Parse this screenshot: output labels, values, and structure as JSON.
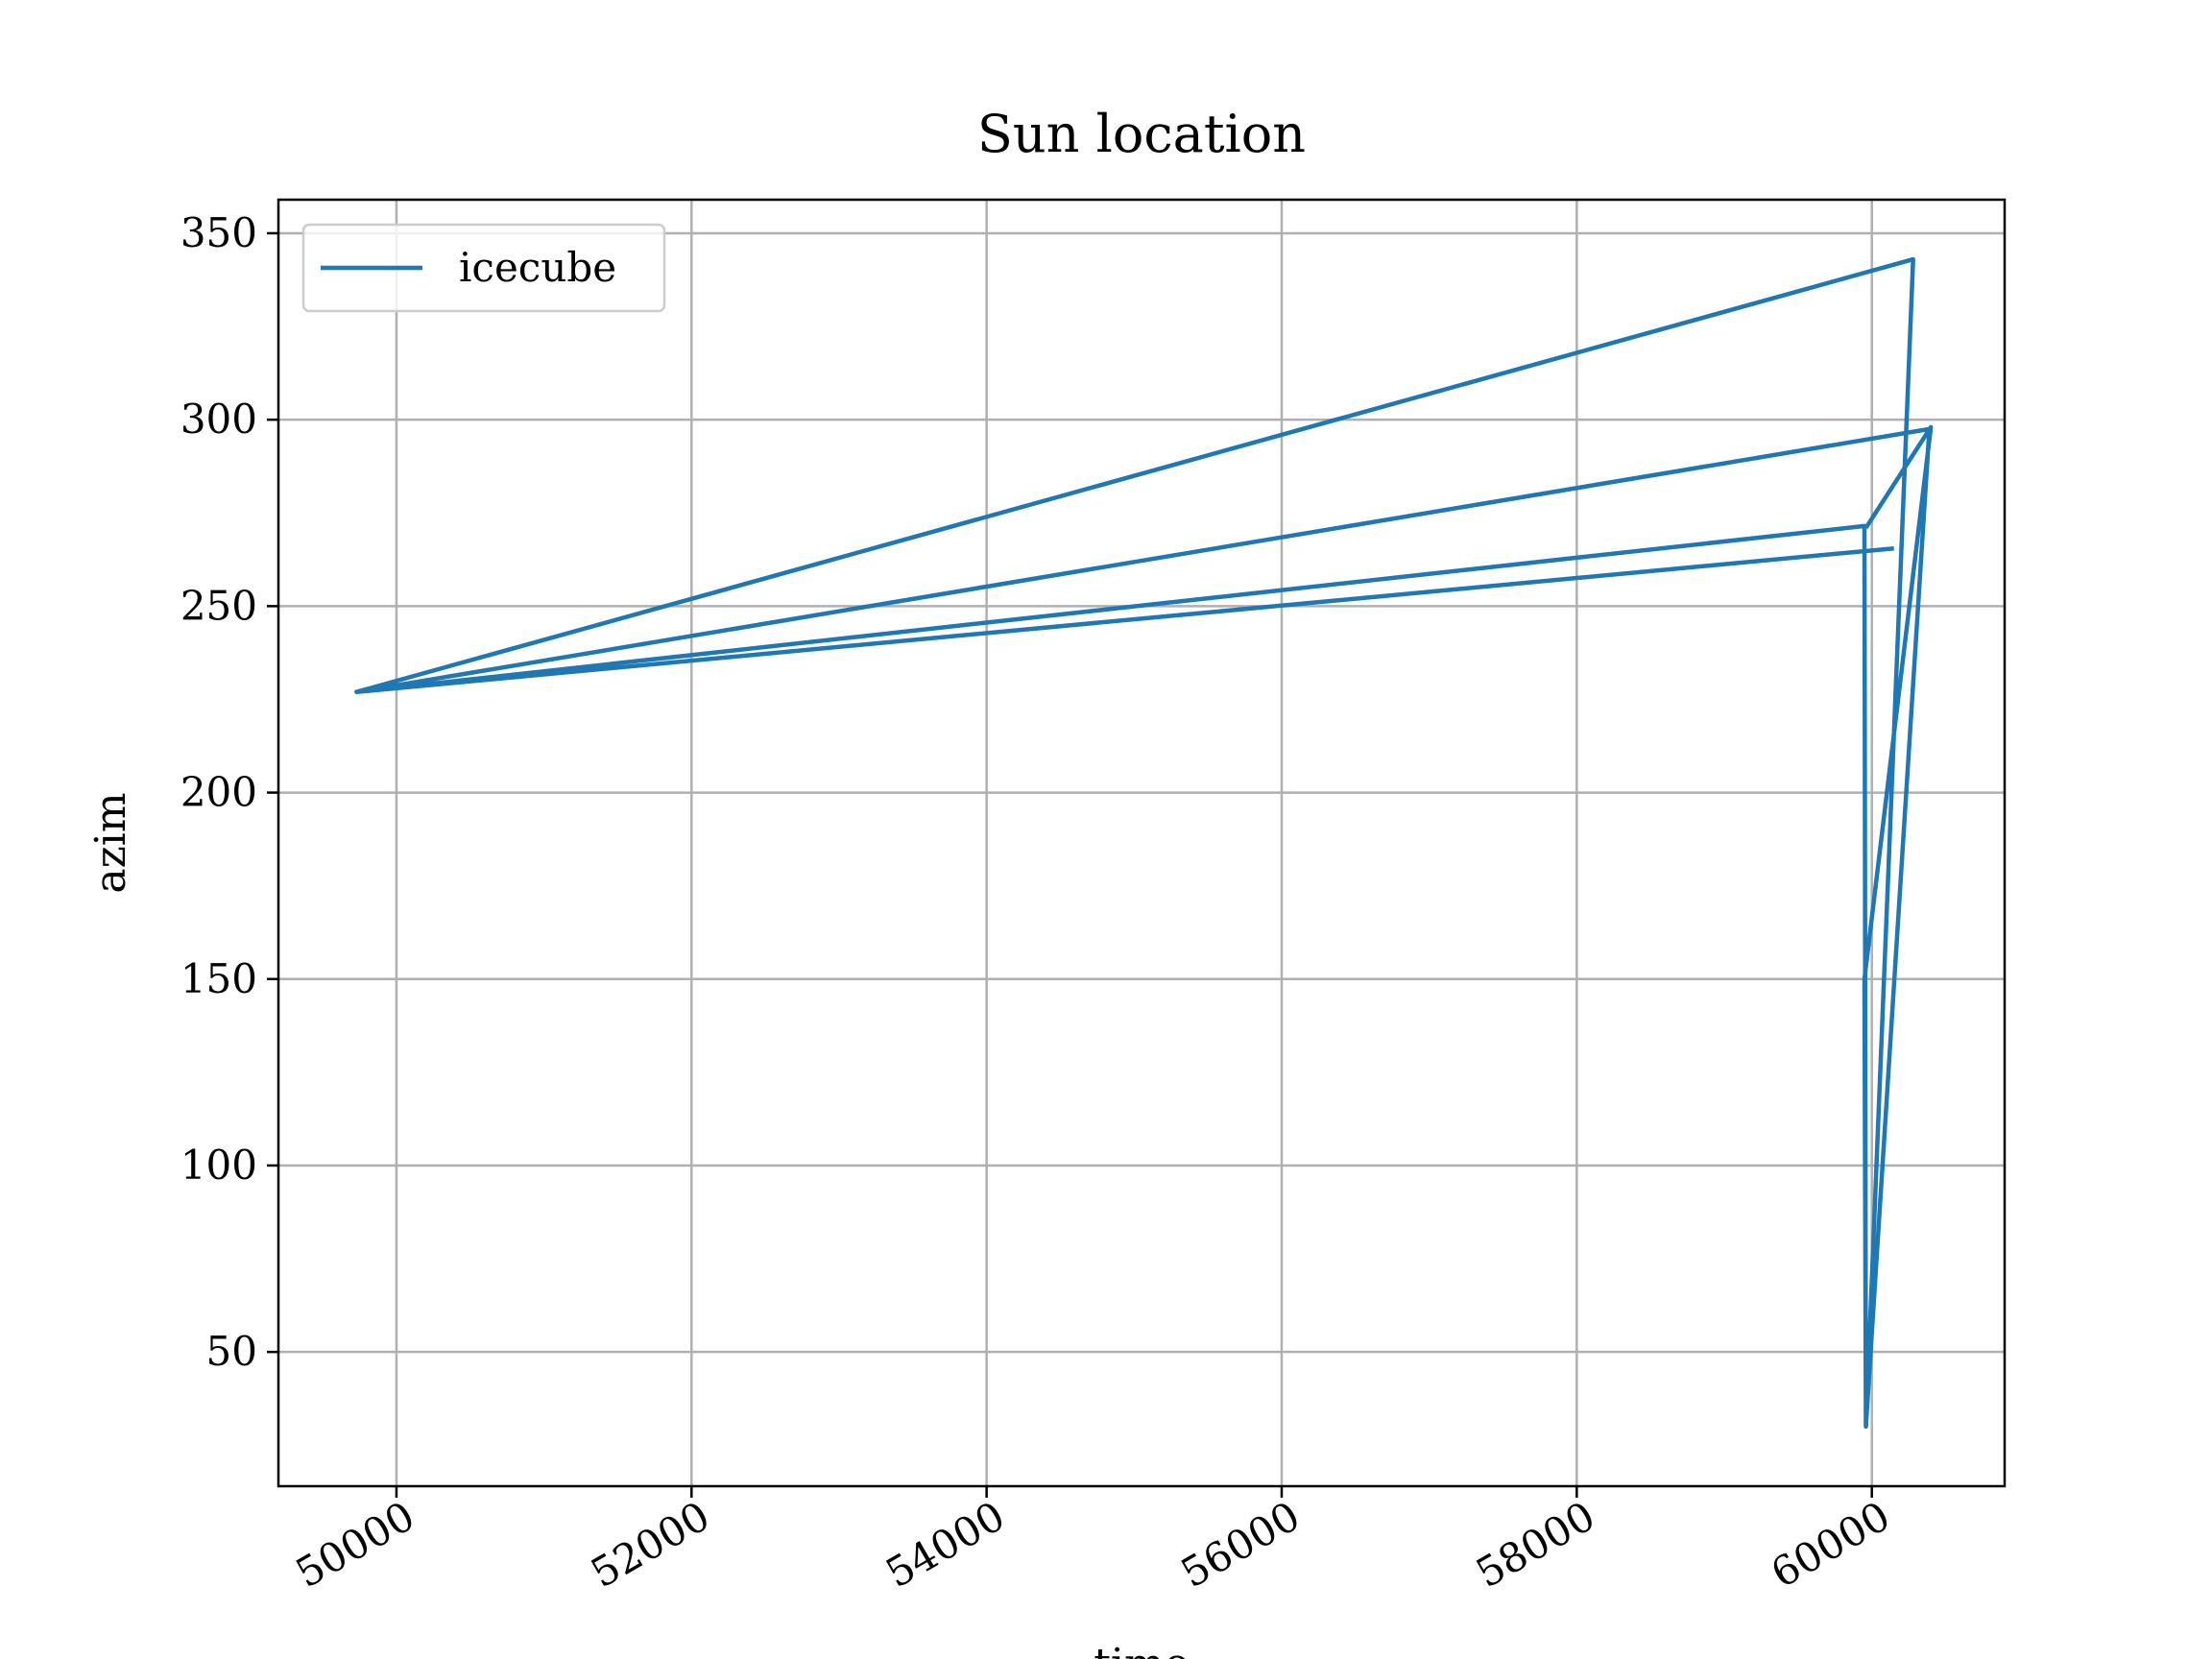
{
  "chart_data": {
    "type": "line",
    "title": "Sun location",
    "xlabel": "time",
    "ylabel": "azim",
    "xlim": [
      49200,
      60900
    ],
    "ylim": [
      14,
      359
    ],
    "xticks": [
      50000,
      52000,
      54000,
      56000,
      58000,
      60000
    ],
    "yticks": [
      50,
      100,
      150,
      200,
      250,
      300,
      350
    ],
    "grid": true,
    "legend_position": "top-left",
    "series": [
      {
        "name": "icecube",
        "color": "#1f77b4",
        "points": [
          [
            60150,
            265.5
          ],
          [
            49730,
            227
          ],
          [
            59950,
            271.5
          ],
          [
            59960,
            30
          ],
          [
            60390,
            297.5
          ],
          [
            49730,
            227
          ],
          [
            60280,
            343
          ],
          [
            59960,
            30
          ],
          [
            59950,
            150
          ],
          [
            60400,
            298
          ],
          [
            59960,
            271
          ]
        ]
      }
    ]
  }
}
